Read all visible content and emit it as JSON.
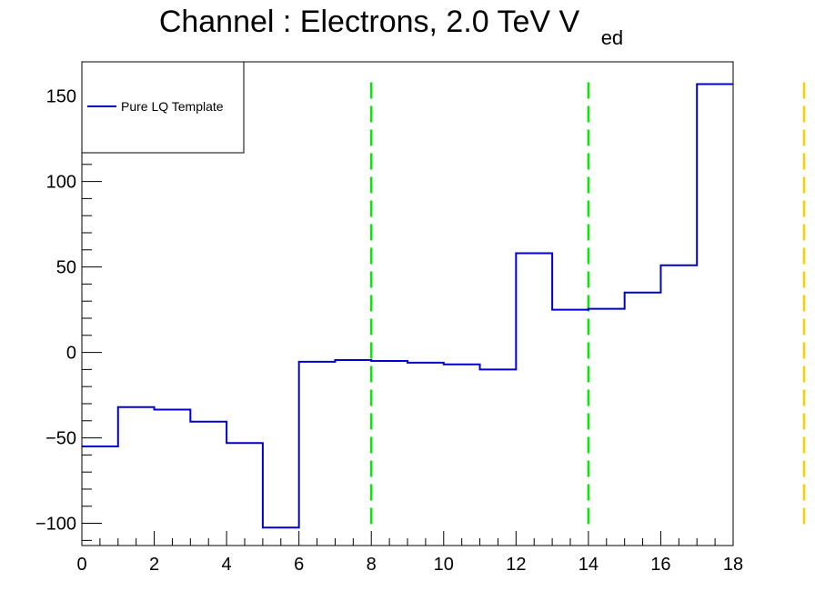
{
  "chart_data": {
    "type": "line",
    "title": "Channel : Electrons, 2.0 TeV V",
    "title_subscript": "ed",
    "xlabel": "",
    "ylabel": "",
    "xlim": [
      0,
      18
    ],
    "ylim": [
      -113,
      170
    ],
    "x_ticks": [
      0,
      2,
      4,
      6,
      8,
      10,
      12,
      14,
      16,
      18
    ],
    "y_ticks": [
      -100,
      -50,
      0,
      50,
      100,
      150
    ],
    "y_tick_labels": [
      "−100",
      "−50",
      "0",
      "50",
      "100",
      "150"
    ],
    "grid": false,
    "legend_position": "top-left",
    "bin_edges": [
      0,
      1,
      2,
      3,
      4,
      5,
      6,
      7,
      8,
      9,
      10,
      11,
      12,
      13,
      14,
      15,
      16,
      17,
      18
    ],
    "series": [
      {
        "name": "Pure LQ Template",
        "color": "#0000cc",
        "style": "step",
        "values": [
          -55,
          -32,
          -33.5,
          -40.5,
          -53,
          -102.5,
          -5.5,
          -4.5,
          -5,
          -6,
          -7,
          -10,
          58,
          25,
          25.5,
          35,
          51,
          157
        ]
      }
    ],
    "vertical_lines": [
      {
        "x": 8,
        "color": "#00ee00",
        "style": "dashed",
        "y_range": [
          -102,
          158
        ]
      },
      {
        "x": 14,
        "color": "#00ee00",
        "style": "dashed",
        "y_range": [
          -102,
          158
        ]
      },
      {
        "x": 20,
        "color": "#ffcc00",
        "style": "dashed",
        "y_range": [
          -102,
          158
        ]
      }
    ]
  }
}
